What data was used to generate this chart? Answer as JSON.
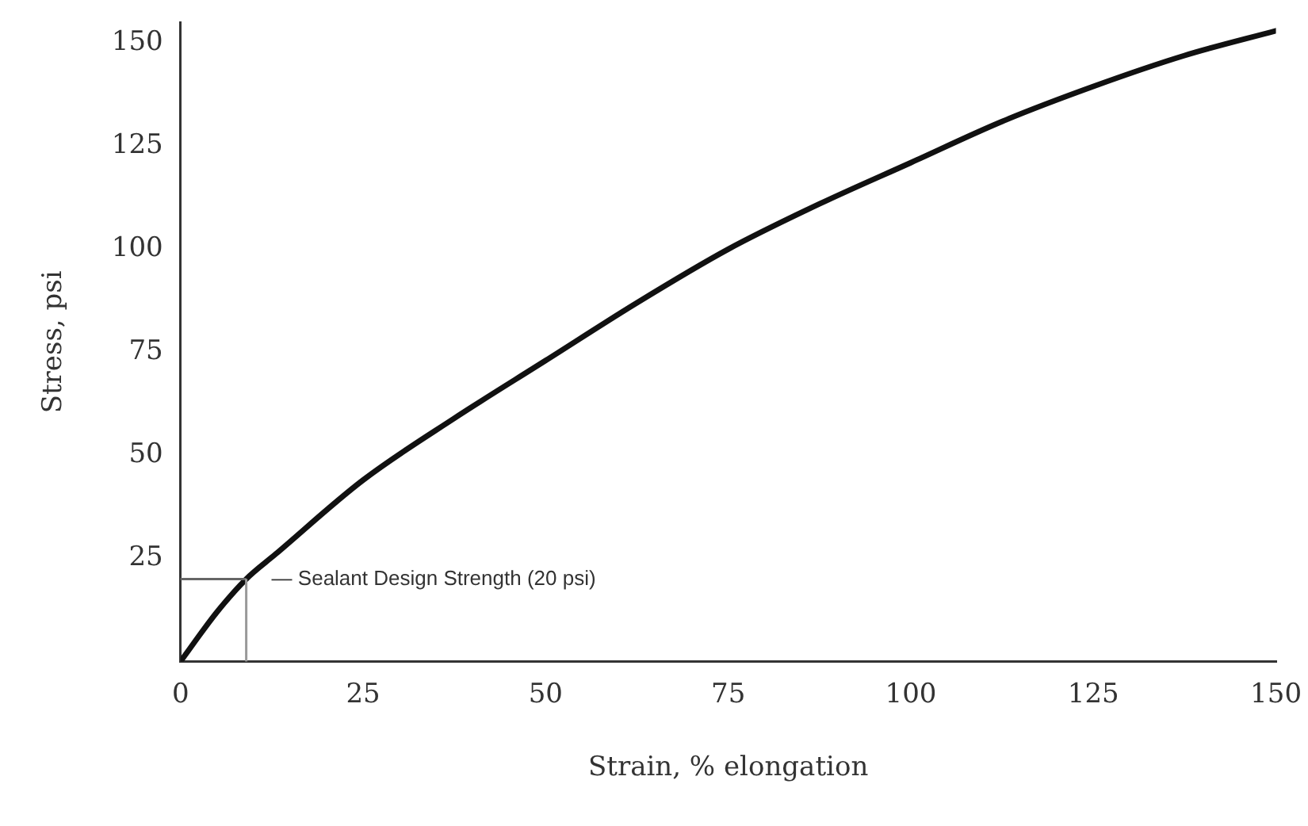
{
  "chart_data": {
    "type": "line",
    "xlabel": "Strain, % elongation",
    "ylabel": "Stress, psi",
    "x": [
      0,
      5,
      9,
      13,
      25,
      37.5,
      50,
      62.5,
      75,
      87.5,
      100,
      112.5,
      125,
      137.5,
      150
    ],
    "series": [
      {
        "color": "#111111",
        "values": [
          0,
          12,
          20,
          26,
          44,
          59,
          73,
          87,
          100,
          111,
          121,
          131,
          139.5,
          147,
          153
        ]
      }
    ],
    "xlim": [
      0,
      150
    ],
    "ylim": [
      0,
      155
    ],
    "xticks": [
      0,
      25,
      50,
      75,
      100,
      125,
      150
    ],
    "yticks": [
      25,
      50,
      75,
      100,
      125,
      150
    ],
    "ref_lines": [
      {
        "axis": "y",
        "value": 20,
        "label": "— Sealant Design Strength (20 psi)",
        "color": "#666666"
      },
      {
        "axis": "x",
        "value": 9,
        "color": "#999999"
      }
    ],
    "grid": false,
    "legend": false,
    "marker": "none",
    "line_style": "solid"
  }
}
